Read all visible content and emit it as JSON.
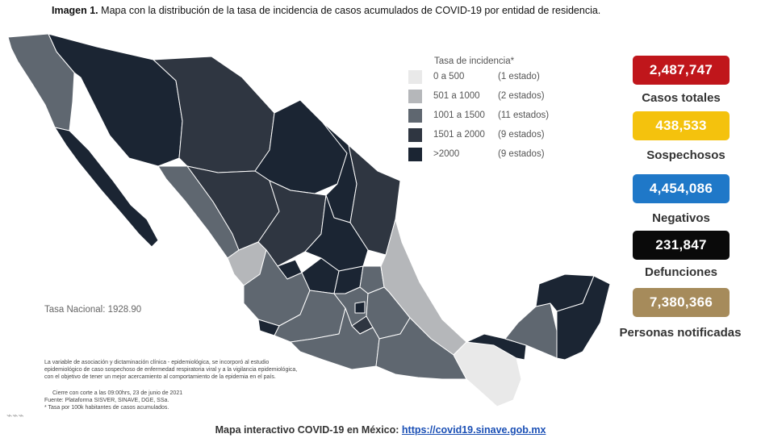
{
  "caption": {
    "label": "Imagen 1.",
    "text": "Mapa con la distribución de la tasa de incidencia de casos acumulados de COVID-19 por entidad de residencia."
  },
  "legend": {
    "title": "Tasa de incidencia*",
    "items": [
      {
        "range": "0 a   500",
        "count": "(1 estado)",
        "color": "#e9e9e9"
      },
      {
        "range": "501 a  1000",
        "count": "(2 estados)",
        "color": "#b5b7ba"
      },
      {
        "range": "1001 a  1500",
        "count": "(11 estados)",
        "color": "#5f6770"
      },
      {
        "range": "1501 a  2000",
        "count": "(9 estados)",
        "color": "#2f3641"
      },
      {
        "range": ">2000",
        "count": "(9 estados)",
        "color": "#1b2533"
      }
    ]
  },
  "tasa_nacional": "Tasa Nacional: 1928.90",
  "note": {
    "lines": [
      "La variable de asociación y dictaminación clínica - epidemiológica, se incorporó al estudio",
      "epidemiológico de caso sospechoso de enfermedad respiratoria viral y a la vigilancia epidemiológica,",
      "con el objetivo de tener un mejor acercamiento al comportamiento de la epidemia en el país."
    ],
    "cierre": "Cierre con corte a las 09:00hrs, 23 de junio de 2021",
    "fuente": "Fuente: Plataforma SISVER, SINAVE, DGE, SSa.",
    "tasa": "* Tasa por 100k habitantes de casos acumulados."
  },
  "stats": [
    {
      "value": "2,487,747",
      "label": "Casos totales",
      "color": "#c0161b"
    },
    {
      "value": "438,533",
      "label": "Sospechosos",
      "color": "#f4c20d"
    },
    {
      "value": "4,454,086",
      "label": "Negativos",
      "color": "#1f78c8"
    },
    {
      "value": "231,847",
      "label": "Defunciones",
      "color": "#0a0a0a"
    },
    {
      "value": "7,380,366",
      "label": "Personas notificadas",
      "color": "#a68b5b"
    }
  ],
  "footer": {
    "label": "Mapa interactivo COVID-19 en México:",
    "link": "https://covid19.sinave.gob.mx"
  }
}
